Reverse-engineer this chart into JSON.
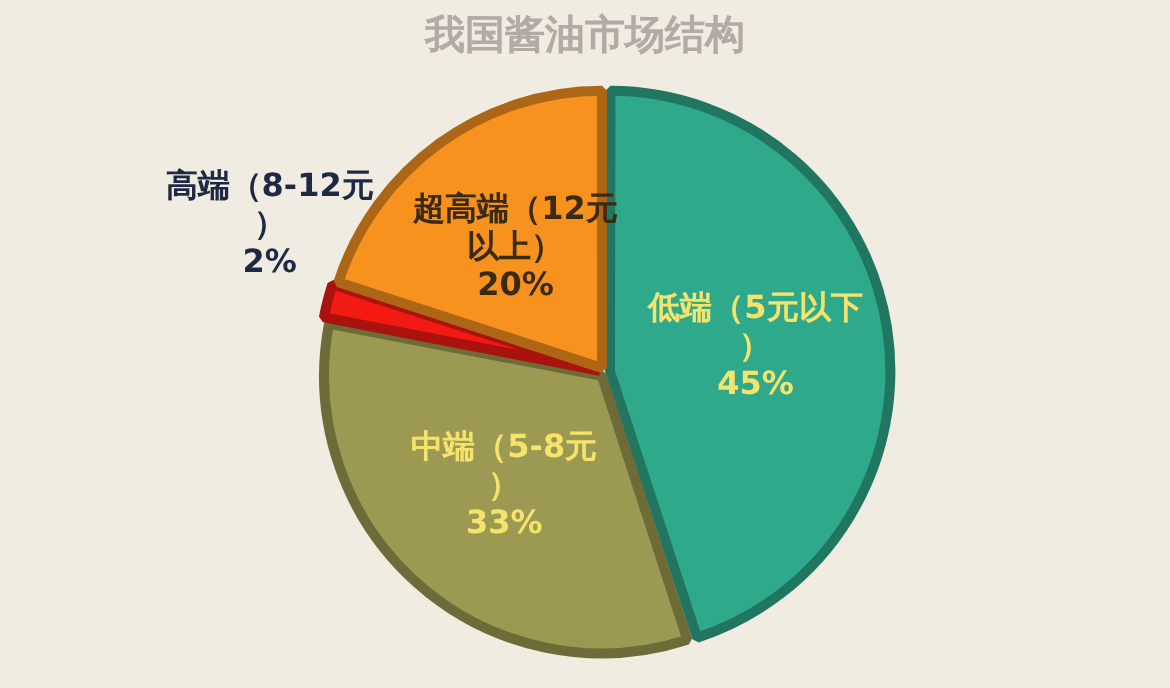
{
  "chart_data": {
    "type": "pie",
    "title": "我国酱油市场结构",
    "categories": [
      "低端（5元以下）",
      "中端（5-8元）",
      "高端（8-12元）",
      "超高端（12元以上）"
    ],
    "values": [
      45,
      33,
      2,
      20
    ],
    "colors": [
      "#2fa98b",
      "#9c9a52",
      "#f21a12",
      "#f7921f"
    ],
    "value_labels": [
      "45%",
      "33%",
      "2%",
      "20%"
    ],
    "legend": false
  }
}
